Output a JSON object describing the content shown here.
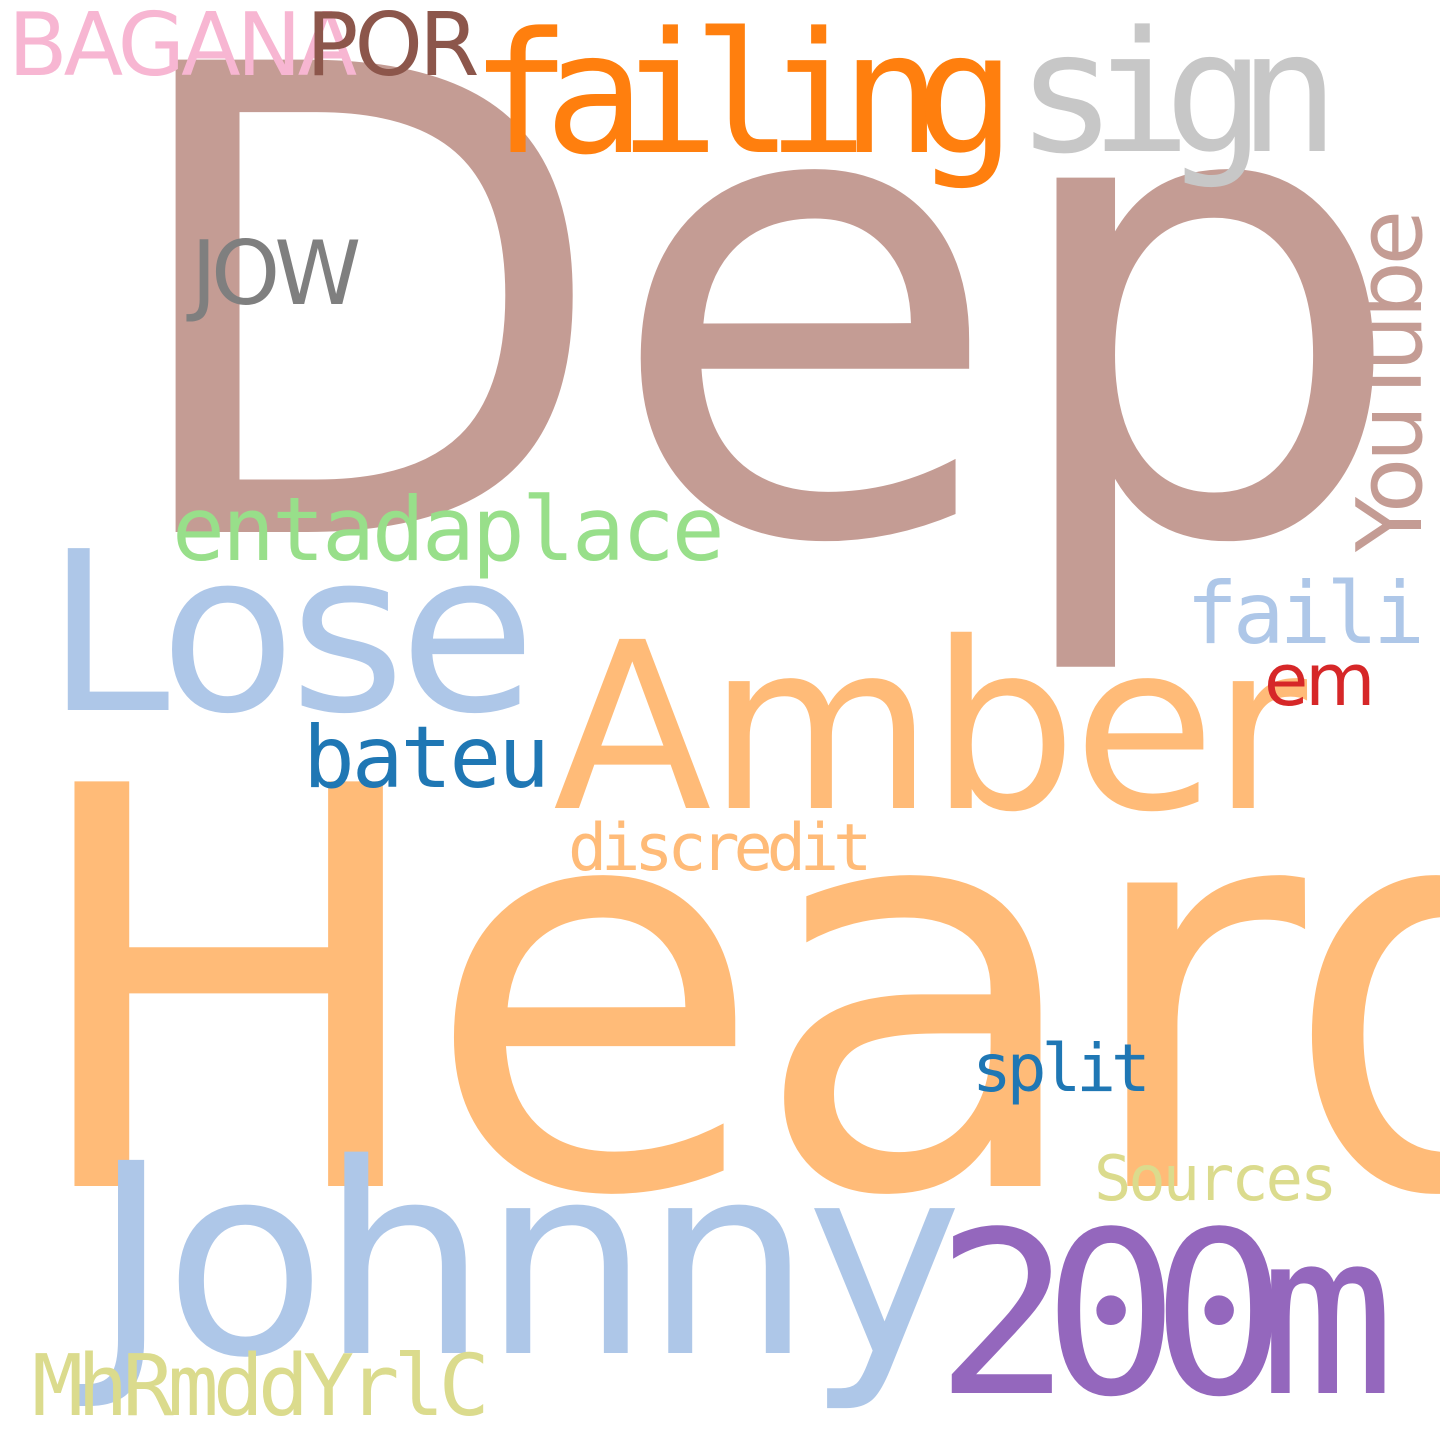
{
  "words": [
    {
      "id": "depp",
      "text": "Depp",
      "color": "#c49c94"
    },
    {
      "id": "heard",
      "text": "Heard",
      "color": "#ffbb78"
    },
    {
      "id": "johnny",
      "text": "Johnny",
      "color": "#aec7e8"
    },
    {
      "id": "lose",
      "text": "Lose",
      "color": "#aec7e8"
    },
    {
      "id": "amber",
      "text": "Amber",
      "color": "#ffbb78"
    },
    {
      "id": "200m",
      "text": "200m",
      "color": "#9467bd"
    },
    {
      "id": "failing",
      "text": "failing",
      "color": "#ff7f0e"
    },
    {
      "id": "sign",
      "text": "sign",
      "color": "#c7c7c7"
    },
    {
      "id": "youtube",
      "text": "YouTube",
      "color": "#c49c94"
    },
    {
      "id": "entadaplace",
      "text": "entadaplace",
      "color": "#98df8a"
    },
    {
      "id": "jow",
      "text": "JOW",
      "color": "#7f7f7f"
    },
    {
      "id": "bagana",
      "text": "BAGANA",
      "color": "#f7b6d2"
    },
    {
      "id": "por",
      "text": "POR",
      "color": "#8c564b"
    },
    {
      "id": "faili",
      "text": "faili",
      "color": "#aec7e8"
    },
    {
      "id": "em",
      "text": "em",
      "color": "#d62728"
    },
    {
      "id": "bateu",
      "text": "bateu",
      "color": "#1f77b4"
    },
    {
      "id": "discredit",
      "text": "discredit",
      "color": "#ffbb78"
    },
    {
      "id": "split",
      "text": "split",
      "color": "#1f77b4"
    },
    {
      "id": "sources",
      "text": "Sources",
      "color": "#dbdb8d"
    },
    {
      "id": "mhrmdd",
      "text": "MhRmddYrlC",
      "color": "#dbdb8d"
    }
  ]
}
